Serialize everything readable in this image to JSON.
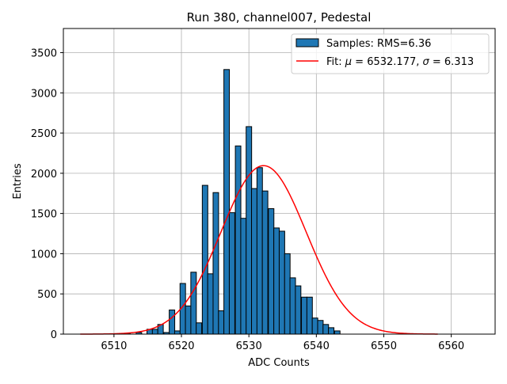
{
  "chart_data": {
    "type": "bar",
    "title": "Run 380, channel007, Pedestal",
    "xlabel": "ADC Counts",
    "ylabel": "Entries",
    "xlim": [
      6502.5,
      6566.5
    ],
    "ylim": [
      0,
      3800
    ],
    "xticks": [
      6510,
      6520,
      6530,
      6540,
      6550,
      6560
    ],
    "yticks": [
      0,
      500,
      1000,
      1500,
      2000,
      2500,
      3000,
      3500
    ],
    "grid": true,
    "bar_color": "#1f77b4",
    "bin_width": 0.816,
    "bins": {
      "x": [
        6505.5,
        6506.3,
        6507.1,
        6508.0,
        6508.8,
        6509.6,
        6510.4,
        6511.2,
        6512.0,
        6512.9,
        6513.7,
        6514.5,
        6515.3,
        6516.1,
        6516.9,
        6517.8,
        6518.6,
        6519.4,
        6520.2,
        6521.0,
        6521.8,
        6522.6,
        6523.5,
        6524.3,
        6525.1,
        6525.9,
        6526.7,
        6527.5,
        6528.4,
        6529.2,
        6530.0,
        6530.8,
        6531.6,
        6532.4,
        6533.3,
        6534.1,
        6534.9,
        6535.7,
        6536.5,
        6537.3,
        6538.2,
        6539.0,
        6539.8,
        6540.6,
        6541.4,
        6542.2,
        6543.1,
        6543.9,
        6544.7,
        6545.5,
        6546.3,
        6547.1,
        6548.0,
        6548.8,
        6549.6,
        6550.4,
        6551.2,
        6552.0,
        6552.9,
        6553.7,
        6554.5,
        6555.3,
        6556.1,
        6556.9,
        6557.8,
        6558.6,
        6559.4,
        6560.2,
        6561.0,
        6561.8,
        6562.7,
        6563.5
      ],
      "counts": [
        0,
        0,
        0,
        0,
        0,
        0,
        0,
        0,
        10,
        0,
        20,
        0,
        60,
        60,
        120,
        20,
        300,
        40,
        630,
        350,
        770,
        140,
        1850,
        750,
        1760,
        290,
        3290,
        1510,
        2340,
        1440,
        2580,
        1810,
        2070,
        1780,
        1560,
        1320,
        1280,
        1000,
        700,
        600,
        460,
        460,
        200,
        170,
        120,
        80,
        40,
        0,
        0,
        0,
        0,
        0,
        0,
        0,
        0,
        0,
        0,
        0,
        0,
        0,
        0,
        0,
        0,
        0,
        0,
        0,
        0,
        0,
        0,
        0,
        0,
        0
      ]
    },
    "series": [
      {
        "name": "Samples: RMS=6.36",
        "type": "histogram"
      },
      {
        "name": "Fit: μ = 6532.177, σ = 6.313",
        "type": "line",
        "color": "#ff0000",
        "mu": 6532.177,
        "sigma": 6.313,
        "amplitude": 2095,
        "x_range": [
          6505,
          6558
        ]
      }
    ],
    "legend": {
      "placement": "top-right",
      "entries": [
        {
          "label": "Samples: RMS=6.36",
          "kind": "patch"
        },
        {
          "label_prefix": "Fit: ",
          "mu_sym": "μ",
          "mu_text": " = 6532.177, ",
          "sigma_sym": "σ",
          "sigma_text": " = 6.313",
          "kind": "line"
        }
      ]
    }
  }
}
